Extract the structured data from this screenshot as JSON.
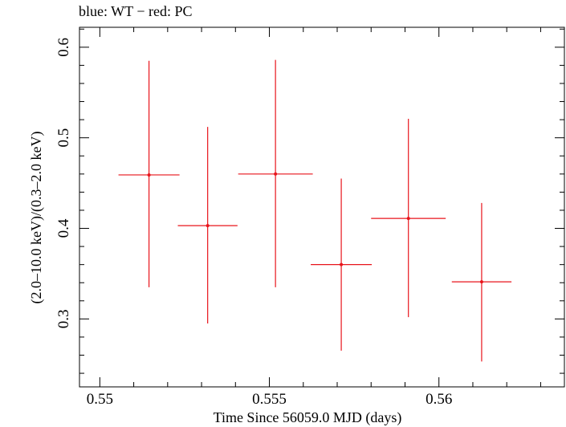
{
  "chart_data": {
    "type": "scatter",
    "title": "blue: WT − red: PC",
    "xlabel": "Time Since 56059.0 MJD (days)",
    "ylabel": "(2.0–10.0 keV)/(0.3–2.0 keV)",
    "xlim": [
      0.5494,
      0.5637
    ],
    "ylim": [
      0.225,
      0.622
    ],
    "x_ticks": [
      0.55,
      0.555,
      0.56
    ],
    "x_tick_labels": [
      "0.55",
      "0.555",
      "0.56"
    ],
    "y_ticks": [
      0.3,
      0.4,
      0.5,
      0.6
    ],
    "y_tick_labels": [
      "0.3",
      "0.4",
      "0.5",
      "0.6"
    ],
    "grid": false,
    "series": [
      {
        "color": "#e8141b",
        "points": [
          {
            "x": 0.55145,
            "xerr_low": 0.0009,
            "xerr_high": 0.0009,
            "y": 0.459,
            "yerr_low": 0.124,
            "yerr_high": 0.126
          },
          {
            "x": 0.55318,
            "xerr_low": 0.00088,
            "xerr_high": 0.00088,
            "y": 0.403,
            "yerr_low": 0.108,
            "yerr_high": 0.109
          },
          {
            "x": 0.55518,
            "xerr_low": 0.0011,
            "xerr_high": 0.0011,
            "y": 0.46,
            "yerr_low": 0.125,
            "yerr_high": 0.126
          },
          {
            "x": 0.55712,
            "xerr_low": 0.0009,
            "xerr_high": 0.0009,
            "y": 0.36,
            "yerr_low": 0.095,
            "yerr_high": 0.095
          },
          {
            "x": 0.5591,
            "xerr_low": 0.0011,
            "xerr_high": 0.0011,
            "y": 0.411,
            "yerr_low": 0.109,
            "yerr_high": 0.11
          },
          {
            "x": 0.56126,
            "xerr_low": 0.00088,
            "xerr_high": 0.00088,
            "y": 0.341,
            "yerr_low": 0.088,
            "yerr_high": 0.087
          }
        ]
      }
    ]
  }
}
